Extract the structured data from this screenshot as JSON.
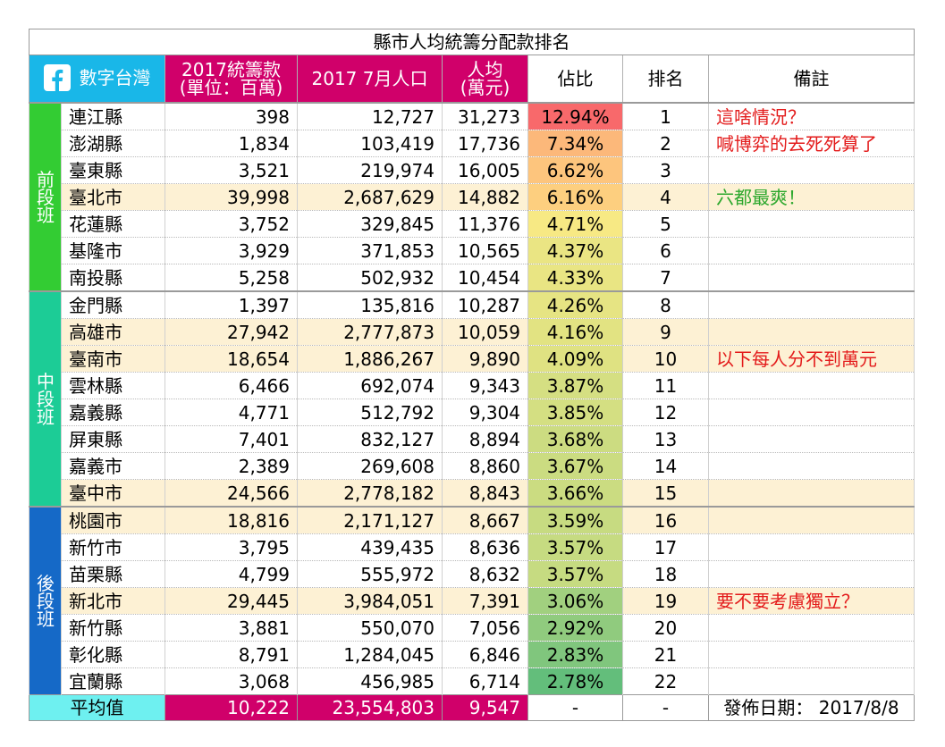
{
  "title": "縣市人均統籌分配款排名",
  "header": {
    "brand": "數字台灣",
    "brand_icon": "facebook-icon",
    "col_funds_line1": "2017統籌款",
    "col_funds_line2": "(單位：百萬)",
    "col_population": "2017 7月人口",
    "col_percap_line1": "人均",
    "col_percap_line2": "(萬元)",
    "col_share": "佔比",
    "col_rank": "排名",
    "col_note": "備註"
  },
  "groups": [
    {
      "label": "前\n段\n班",
      "color": "#33cc33"
    },
    {
      "label": "中\n段\n班",
      "color": "#1ccc96"
    },
    {
      "label": "後\n段\n班",
      "color": "#1569c7"
    }
  ],
  "rows": [
    {
      "city": "連江縣",
      "funds": "398",
      "population": "12,727",
      "percap": "31,273",
      "share": "12.94%",
      "share_value": 12.94,
      "rank": "1",
      "note": "這啥情況？",
      "note_color": "#e31b1b",
      "highlight": false
    },
    {
      "city": "澎湖縣",
      "funds": "1,834",
      "population": "103,419",
      "percap": "17,736",
      "share": "7.34%",
      "share_value": 7.34,
      "rank": "2",
      "note": "喊博弈的去死死算了",
      "note_color": "#e31b1b",
      "highlight": false
    },
    {
      "city": "臺東縣",
      "funds": "3,521",
      "population": "219,974",
      "percap": "16,005",
      "share": "6.62%",
      "share_value": 6.62,
      "rank": "3",
      "note": "",
      "note_color": "",
      "highlight": false
    },
    {
      "city": "臺北市",
      "funds": "39,998",
      "population": "2,687,629",
      "percap": "14,882",
      "share": "6.16%",
      "share_value": 6.16,
      "rank": "4",
      "note": "六都最爽！",
      "note_color": "#2ea82e",
      "highlight": true
    },
    {
      "city": "花蓮縣",
      "funds": "3,752",
      "population": "329,845",
      "percap": "11,376",
      "share": "4.71%",
      "share_value": 4.71,
      "rank": "5",
      "note": "",
      "note_color": "",
      "highlight": false
    },
    {
      "city": "基隆市",
      "funds": "3,929",
      "population": "371,853",
      "percap": "10,565",
      "share": "4.37%",
      "share_value": 4.37,
      "rank": "6",
      "note": "",
      "note_color": "",
      "highlight": false
    },
    {
      "city": "南投縣",
      "funds": "5,258",
      "population": "502,932",
      "percap": "10,454",
      "share": "4.33%",
      "share_value": 4.33,
      "rank": "7",
      "note": "",
      "note_color": "",
      "highlight": false
    },
    {
      "city": "金門縣",
      "funds": "1,397",
      "population": "135,816",
      "percap": "10,287",
      "share": "4.26%",
      "share_value": 4.26,
      "rank": "8",
      "note": "",
      "note_color": "",
      "highlight": false
    },
    {
      "city": "高雄市",
      "funds": "27,942",
      "population": "2,777,873",
      "percap": "10,059",
      "share": "4.16%",
      "share_value": 4.16,
      "rank": "9",
      "note": "",
      "note_color": "",
      "highlight": true
    },
    {
      "city": "臺南市",
      "funds": "18,654",
      "population": "1,886,267",
      "percap": "9,890",
      "share": "4.09%",
      "share_value": 4.09,
      "rank": "10",
      "note": "以下每人分不到萬元",
      "note_color": "#e31b1b",
      "highlight": true
    },
    {
      "city": "雲林縣",
      "funds": "6,466",
      "population": "692,074",
      "percap": "9,343",
      "share": "3.87%",
      "share_value": 3.87,
      "rank": "11",
      "note": "",
      "note_color": "",
      "highlight": false
    },
    {
      "city": "嘉義縣",
      "funds": "4,771",
      "population": "512,792",
      "percap": "9,304",
      "share": "3.85%",
      "share_value": 3.85,
      "rank": "12",
      "note": "",
      "note_color": "",
      "highlight": false
    },
    {
      "city": "屏東縣",
      "funds": "7,401",
      "population": "832,127",
      "percap": "8,894",
      "share": "3.68%",
      "share_value": 3.68,
      "rank": "13",
      "note": "",
      "note_color": "",
      "highlight": false
    },
    {
      "city": "嘉義市",
      "funds": "2,389",
      "population": "269,608",
      "percap": "8,860",
      "share": "3.67%",
      "share_value": 3.67,
      "rank": "14",
      "note": "",
      "note_color": "",
      "highlight": false
    },
    {
      "city": "臺中市",
      "funds": "24,566",
      "population": "2,778,182",
      "percap": "8,843",
      "share": "3.66%",
      "share_value": 3.66,
      "rank": "15",
      "note": "",
      "note_color": "",
      "highlight": true
    },
    {
      "city": "桃園市",
      "funds": "18,816",
      "population": "2,171,127",
      "percap": "8,667",
      "share": "3.59%",
      "share_value": 3.59,
      "rank": "16",
      "note": "",
      "note_color": "",
      "highlight": true
    },
    {
      "city": "新竹市",
      "funds": "3,795",
      "population": "439,435",
      "percap": "8,636",
      "share": "3.57%",
      "share_value": 3.57,
      "rank": "17",
      "note": "",
      "note_color": "",
      "highlight": false
    },
    {
      "city": "苗栗縣",
      "funds": "4,799",
      "population": "555,972",
      "percap": "8,632",
      "share": "3.57%",
      "share_value": 3.57,
      "rank": "18",
      "note": "",
      "note_color": "",
      "highlight": false
    },
    {
      "city": "新北市",
      "funds": "29,445",
      "population": "3,984,051",
      "percap": "7,391",
      "share": "3.06%",
      "share_value": 3.06,
      "rank": "19",
      "note": "要不要考慮獨立？",
      "note_color": "#e31b1b",
      "highlight": true
    },
    {
      "city": "新竹縣",
      "funds": "3,881",
      "population": "550,070",
      "percap": "7,056",
      "share": "2.92%",
      "share_value": 2.92,
      "rank": "20",
      "note": "",
      "note_color": "",
      "highlight": false
    },
    {
      "city": "彰化縣",
      "funds": "8,791",
      "population": "1,284,045",
      "percap": "6,846",
      "share": "2.83%",
      "share_value": 2.83,
      "rank": "21",
      "note": "",
      "note_color": "",
      "highlight": false
    },
    {
      "city": "宜蘭縣",
      "funds": "3,068",
      "population": "456,985",
      "percap": "6,714",
      "share": "2.78%",
      "share_value": 2.78,
      "rank": "22",
      "note": "",
      "note_color": "",
      "highlight": false
    }
  ],
  "average": {
    "label": "平均值",
    "funds": "10,222",
    "population": "23,554,803",
    "percap": "9,547",
    "share": "-",
    "rank": "-",
    "date": "發佈日期： 2017/8/8"
  }
}
